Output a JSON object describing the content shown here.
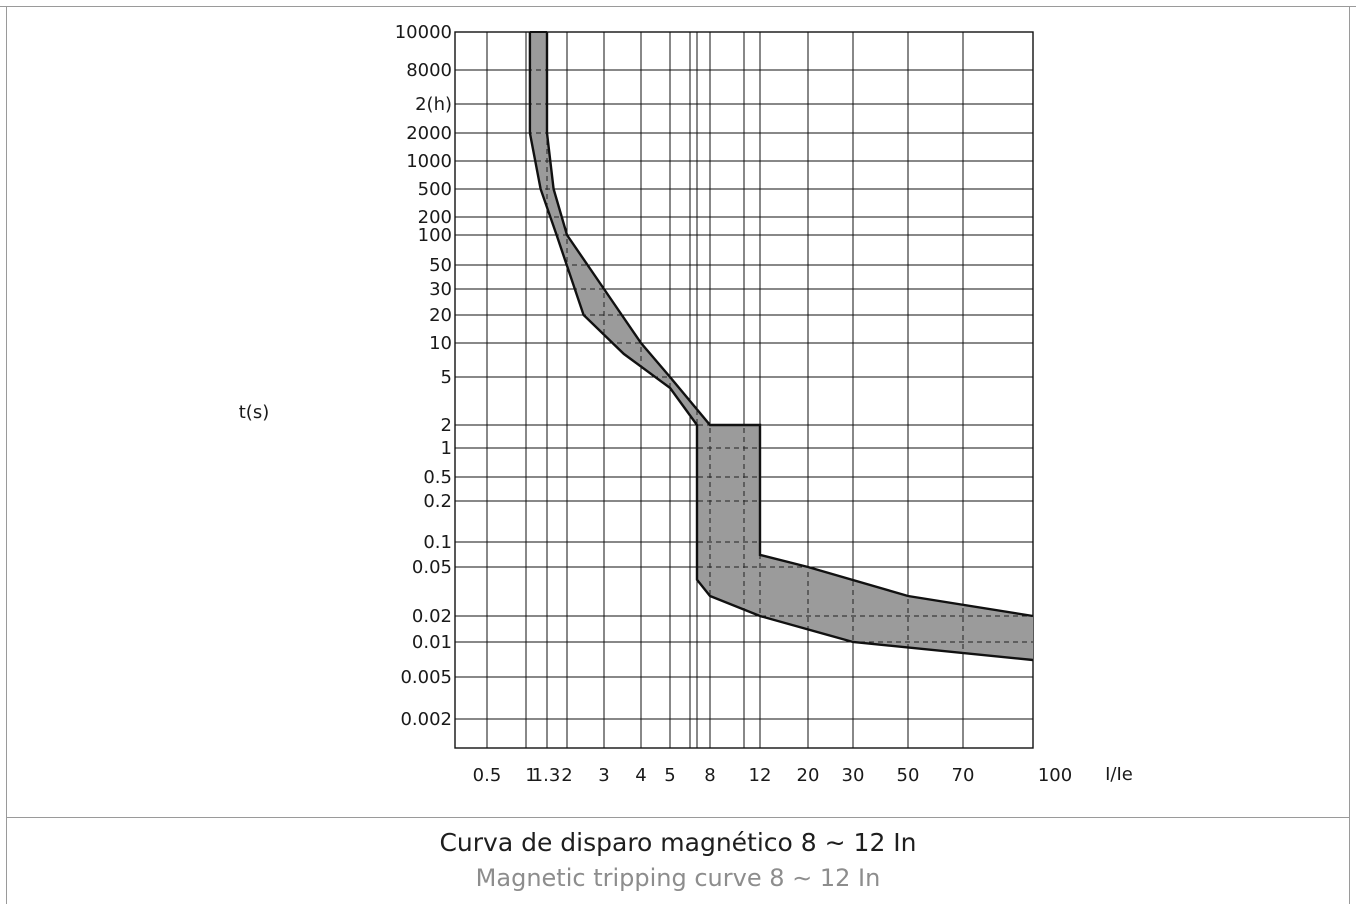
{
  "caption": {
    "title_es": "Curva de disparo magnético 8 ∼ 12 In",
    "title_en": "Magnetic tripping curve 8 ∼ 12 In"
  },
  "chart_data": {
    "type": "area",
    "xlabel": "I/Ie",
    "ylabel": "t(s)",
    "x_scale": "log",
    "y_scale": "log",
    "grid": true,
    "xlim": [
      0.3,
      100
    ],
    "ylim": [
      0.001,
      10000
    ],
    "x_ticks": [
      {
        "label": "0.5",
        "value": 0.5
      },
      {
        "label": "1",
        "value": 1
      },
      {
        "label": "1.3",
        "value": 1.3
      },
      {
        "label": "2",
        "value": 2
      },
      {
        "label": "3",
        "value": 3
      },
      {
        "label": "4",
        "value": 4
      },
      {
        "label": "5",
        "value": 5
      },
      {
        "label": "8",
        "value": 8
      },
      {
        "label": "12",
        "value": 12
      },
      {
        "label": "20",
        "value": 20
      },
      {
        "label": "30",
        "value": 30
      },
      {
        "label": "50",
        "value": 50
      },
      {
        "label": "70",
        "value": 70
      },
      {
        "label": "100",
        "value": 100
      }
    ],
    "y_ticks": [
      {
        "label": "10000",
        "value": 10000
      },
      {
        "label": "8000",
        "value": 8000
      },
      {
        "label": "2(h)",
        "value": 7200
      },
      {
        "label": "2000",
        "value": 2000
      },
      {
        "label": "1000",
        "value": 1000
      },
      {
        "label": "500",
        "value": 500
      },
      {
        "label": "200",
        "value": 200
      },
      {
        "label": "100",
        "value": 100
      },
      {
        "label": "50",
        "value": 50
      },
      {
        "label": "30",
        "value": 30
      },
      {
        "label": "20",
        "value": 20
      },
      {
        "label": "10",
        "value": 10
      },
      {
        "label": "5",
        "value": 5
      },
      {
        "label": "2",
        "value": 2
      },
      {
        "label": "1",
        "value": 1
      },
      {
        "label": "0.5",
        "value": 0.5
      },
      {
        "label": "0.2",
        "value": 0.2
      },
      {
        "label": "0.1",
        "value": 0.1
      },
      {
        "label": "0.05",
        "value": 0.05
      },
      {
        "label": "0.02",
        "value": 0.02
      },
      {
        "label": "0.01",
        "value": 0.01
      },
      {
        "label": "0.005",
        "value": 0.005
      },
      {
        "label": "0.002",
        "value": 0.002
      }
    ],
    "band": {
      "fill": "#9b9b9b",
      "stroke": "#111111",
      "upper": [
        [
          1.3,
          10000
        ],
        [
          1.3,
          2000
        ],
        [
          1.5,
          500
        ],
        [
          2,
          100
        ],
        [
          3,
          30
        ],
        [
          4,
          10
        ],
        [
          5,
          5
        ],
        [
          8,
          2
        ],
        [
          12,
          2
        ],
        [
          12,
          0.07
        ],
        [
          20,
          0.05
        ],
        [
          50,
          0.03
        ],
        [
          100,
          0.02
        ]
      ],
      "lower": [
        [
          1.05,
          10000
        ],
        [
          1.05,
          2000
        ],
        [
          1.2,
          500
        ],
        [
          1.6,
          100
        ],
        [
          2.4,
          20
        ],
        [
          3.5,
          8
        ],
        [
          5,
          4
        ],
        [
          7,
          2
        ],
        [
          7,
          0.04
        ],
        [
          8,
          0.03
        ],
        [
          12,
          0.02
        ],
        [
          30,
          0.01
        ],
        [
          100,
          0.007
        ]
      ]
    }
  }
}
